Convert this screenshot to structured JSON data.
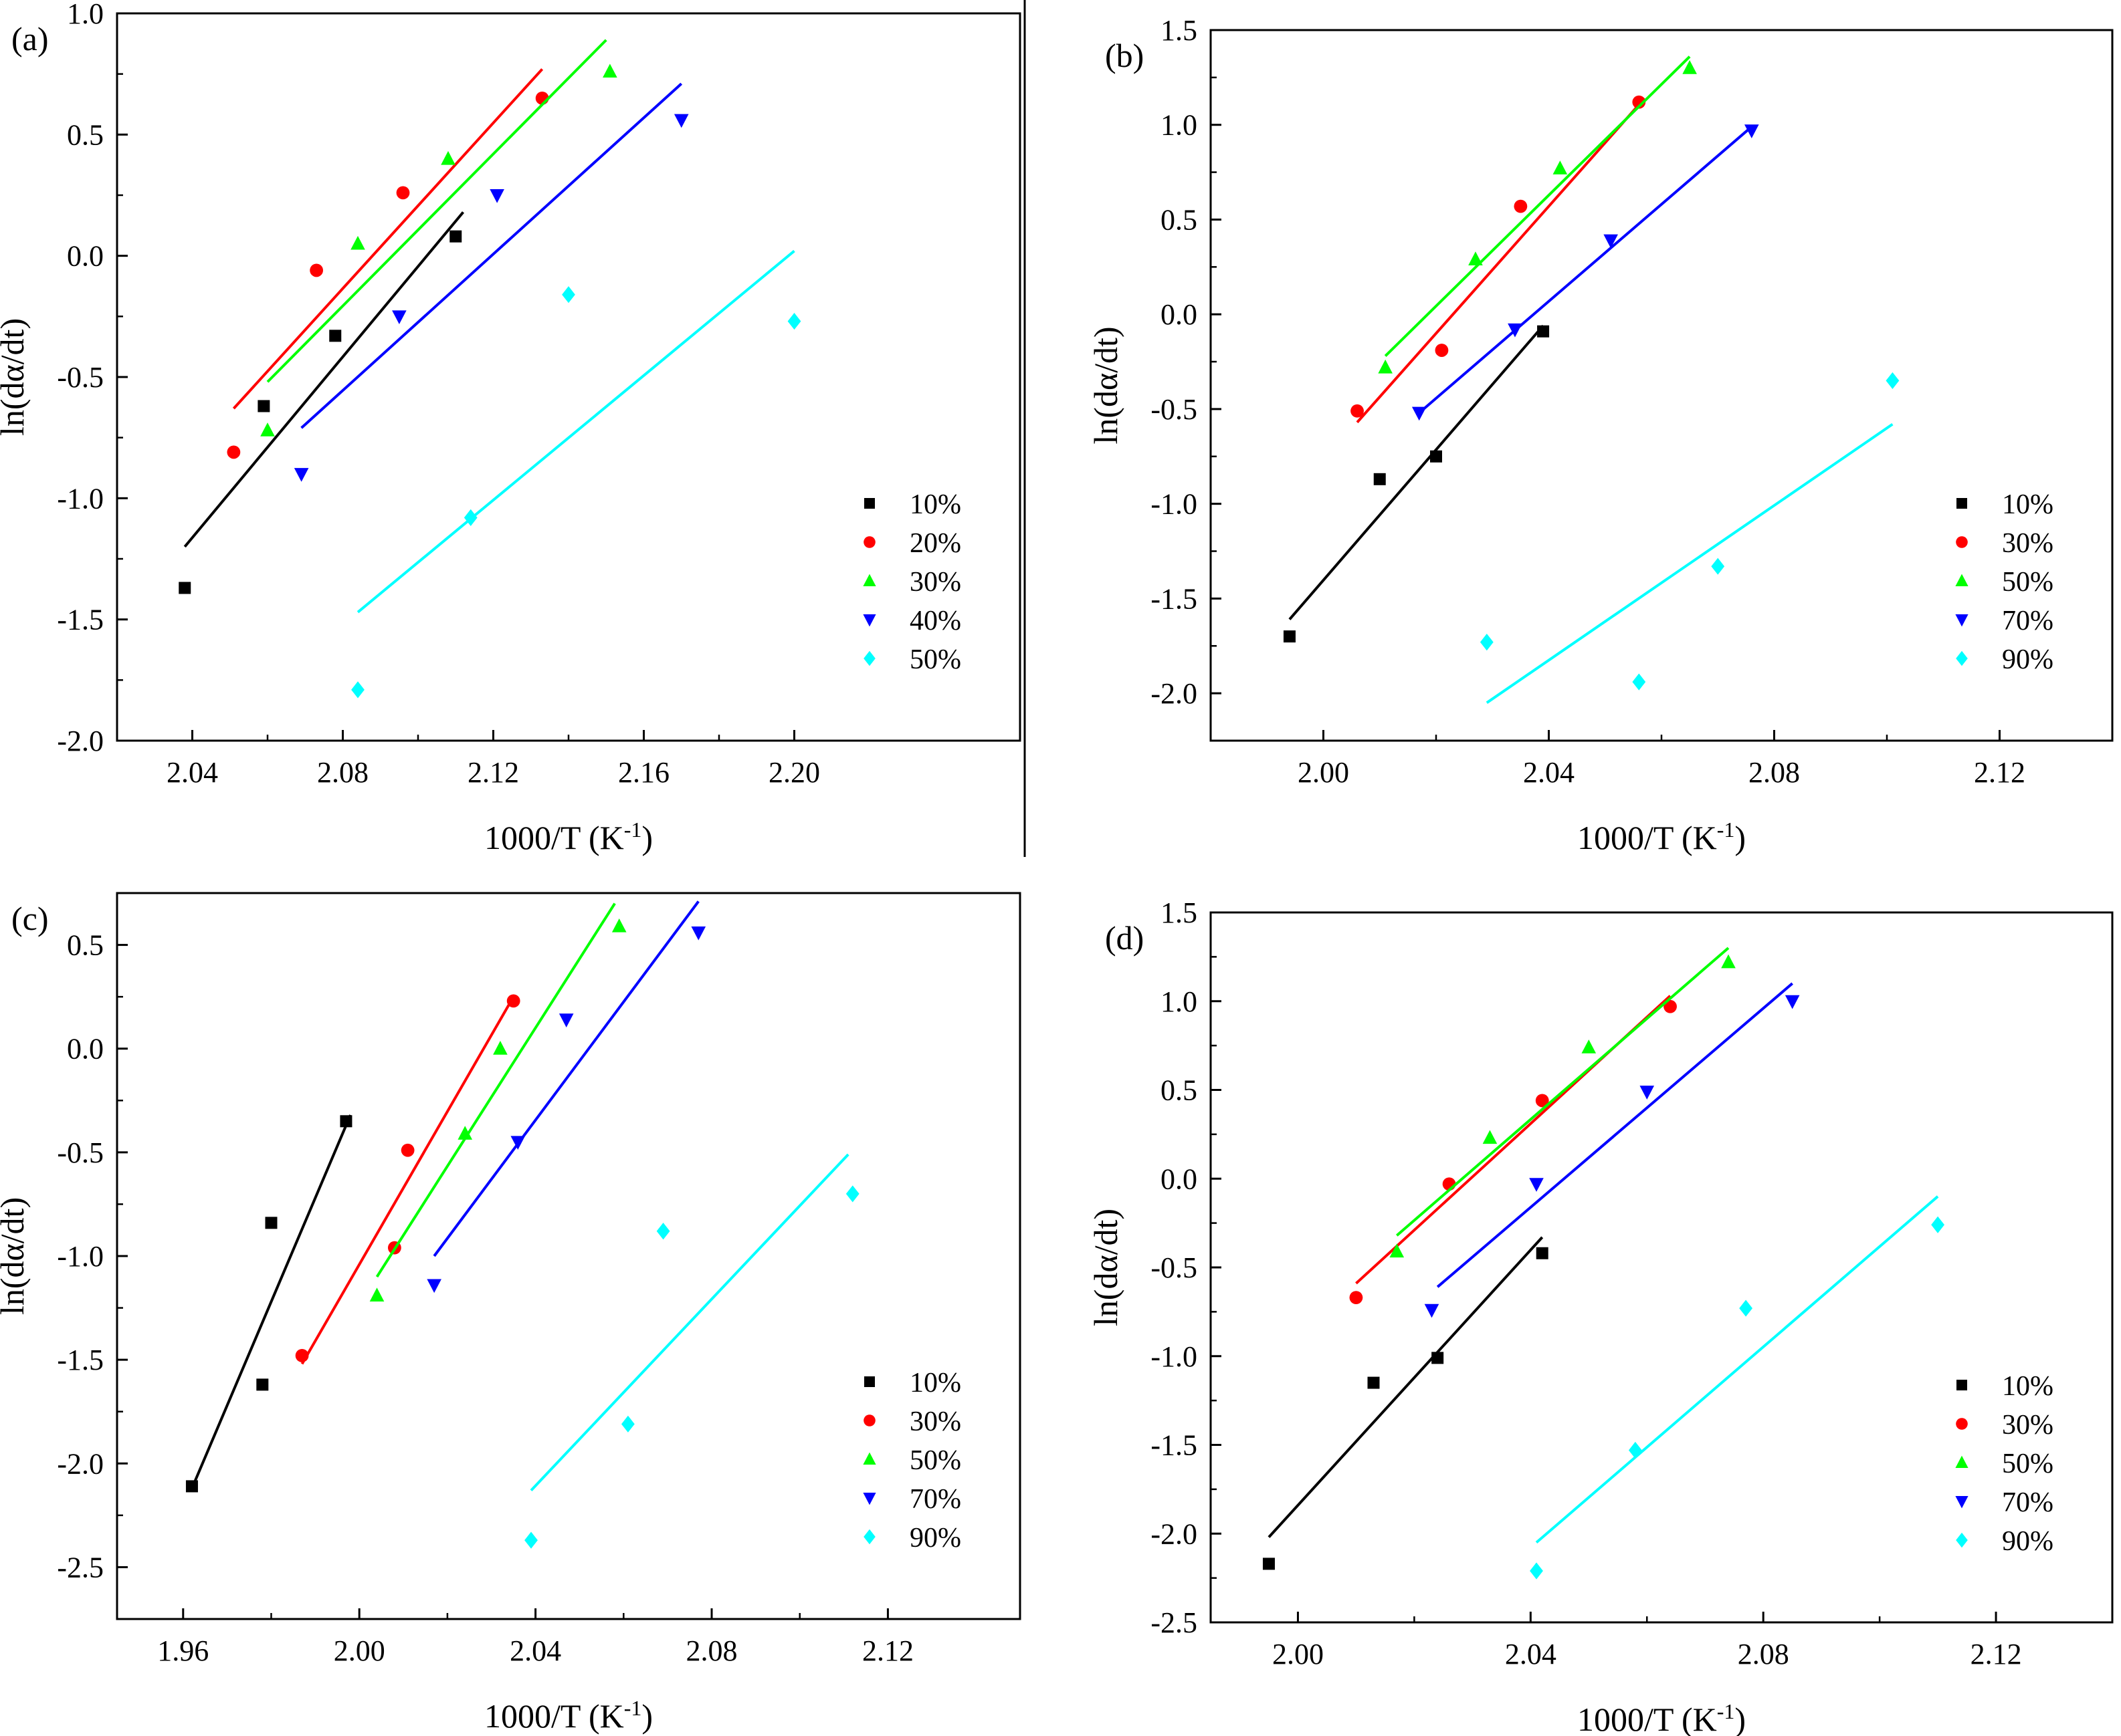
{
  "chart_data": [
    {
      "id": "a",
      "type": "scatter",
      "panel_label": "(a)",
      "xlabel": "1000/T (K",
      "xlabel_sup": "-1",
      "xlabel_close": ")",
      "ylabel": "ln(dα/dt)",
      "xlim": [
        2.02,
        2.26
      ],
      "ylim": [
        -2.0,
        1.0
      ],
      "xticks": [
        2.04,
        2.08,
        2.12,
        2.16,
        2.2
      ],
      "xtick_labels": [
        "2.04",
        "2.08",
        "2.12",
        "2.16",
        "2.20"
      ],
      "yticks": [
        1.0,
        0.5,
        0.0,
        -0.5,
        -1.0,
        -1.5,
        -2.0
      ],
      "ytick_labels": [
        "1.0",
        "0.5",
        "0.0",
        "-0.5",
        "-1.0",
        "-1.5",
        "-2.0"
      ],
      "legend_position": "bottom-right",
      "series": [
        {
          "name": "10%",
          "color": "#000000",
          "marker": "square",
          "x": [
            2.038,
            2.059,
            2.078,
            2.11
          ],
          "y": [
            -1.37,
            -0.62,
            -0.33,
            0.08
          ],
          "fit": [
            [
              2.038,
              -1.2
            ],
            [
              2.112,
              0.18
            ]
          ]
        },
        {
          "name": "20%",
          "color": "#ff0000",
          "marker": "circle",
          "x": [
            2.051,
            2.073,
            2.096,
            2.133
          ],
          "y": [
            -0.81,
            -0.06,
            0.26,
            0.65
          ],
          "fit": [
            [
              2.051,
              -0.63
            ],
            [
              2.133,
              0.77
            ]
          ]
        },
        {
          "name": "30%",
          "color": "#00ff00",
          "marker": "triangle-up",
          "x": [
            2.06,
            2.084,
            2.108,
            2.151
          ],
          "y": [
            -0.72,
            0.05,
            0.4,
            0.76
          ],
          "fit": [
            [
              2.06,
              -0.52
            ],
            [
              2.15,
              0.89
            ]
          ]
        },
        {
          "name": "40%",
          "color": "#0000ff",
          "marker": "triangle-down",
          "x": [
            2.069,
            2.095,
            2.121,
            2.17
          ],
          "y": [
            -0.9,
            -0.25,
            0.25,
            0.56
          ],
          "fit": [
            [
              2.069,
              -0.71
            ],
            [
              2.17,
              0.71
            ]
          ]
        },
        {
          "name": "50%",
          "color": "#00ffff",
          "marker": "diamond",
          "x": [
            2.084,
            2.114,
            2.14,
            2.2
          ],
          "y": [
            -1.79,
            -1.08,
            -0.16,
            -0.27
          ],
          "fit": [
            [
              2.084,
              -1.47
            ],
            [
              2.2,
              0.02
            ]
          ]
        }
      ]
    },
    {
      "id": "b",
      "type": "scatter",
      "panel_label": "(b)",
      "xlabel": "1000/T (K",
      "xlabel_sup": "-1",
      "xlabel_close": ")",
      "ylabel": "ln(dα/dt)",
      "xlim": [
        1.98,
        2.14
      ],
      "ylim": [
        -2.25,
        1.5
      ],
      "xticks": [
        2.0,
        2.04,
        2.08,
        2.12
      ],
      "xtick_labels": [
        "2.00",
        "2.04",
        "2.08",
        "2.12"
      ],
      "yticks": [
        1.5,
        1.0,
        0.5,
        0.0,
        -0.5,
        -1.0,
        -1.5,
        -2.0
      ],
      "ytick_labels": [
        "1.5",
        "1.0",
        "0.5",
        "0.0",
        "-0.5",
        "-1.0",
        "-1.5",
        "-2.0"
      ],
      "legend_position": "bottom-right",
      "series": [
        {
          "name": "10%",
          "color": "#000000",
          "marker": "square",
          "x": [
            1.994,
            2.01,
            2.02,
            2.039
          ],
          "y": [
            -1.7,
            -0.87,
            -0.75,
            -0.09
          ],
          "fit": [
            [
              1.994,
              -1.61
            ],
            [
              2.039,
              -0.06
            ]
          ]
        },
        {
          "name": "30%",
          "color": "#ff0000",
          "marker": "circle",
          "x": [
            2.006,
            2.021,
            2.035,
            2.056
          ],
          "y": [
            -0.51,
            -0.19,
            0.57,
            1.12
          ],
          "fit": [
            [
              2.006,
              -0.57
            ],
            [
              2.057,
              1.14
            ]
          ]
        },
        {
          "name": "50%",
          "color": "#00ff00",
          "marker": "triangle-up",
          "x": [
            2.011,
            2.027,
            2.042,
            2.065
          ],
          "y": [
            -0.28,
            0.29,
            0.77,
            1.3
          ],
          "fit": [
            [
              2.011,
              -0.22
            ],
            [
              2.065,
              1.36
            ]
          ]
        },
        {
          "name": "70%",
          "color": "#0000ff",
          "marker": "triangle-down",
          "x": [
            2.017,
            2.034,
            2.051,
            2.076
          ],
          "y": [
            -0.52,
            -0.08,
            0.39,
            0.97
          ],
          "fit": [
            [
              2.017,
              -0.52
            ],
            [
              2.076,
              0.99
            ]
          ]
        },
        {
          "name": "90%",
          "color": "#00ffff",
          "marker": "diamond",
          "x": [
            2.029,
            2.056,
            2.07,
            2.101
          ],
          "y": [
            -1.73,
            -1.94,
            -1.33,
            -0.35
          ],
          "fit": [
            [
              2.029,
              -2.05
            ],
            [
              2.101,
              -0.58
            ]
          ]
        }
      ]
    },
    {
      "id": "c",
      "type": "scatter",
      "panel_label": "(c)",
      "xlabel": "1000/T (K",
      "xlabel_sup": "-1",
      "xlabel_close": ")",
      "ylabel": "ln(dα/dt)",
      "xlim": [
        1.945,
        2.15
      ],
      "ylim": [
        -2.75,
        0.75
      ],
      "xticks": [
        1.96,
        2.0,
        2.04,
        2.08,
        2.12
      ],
      "xtick_labels": [
        "1.96",
        "2.00",
        "2.04",
        "2.08",
        "2.12"
      ],
      "yticks": [
        0.5,
        0.0,
        -0.5,
        -1.0,
        -1.5,
        -2.0,
        -2.5
      ],
      "ytick_labels": [
        "0.5",
        "0.0",
        "-0.5",
        "-1.0",
        "-1.5",
        "-2.0",
        "-2.5"
      ],
      "legend_position": "bottom-right",
      "series": [
        {
          "name": "10%",
          "color": "#000000",
          "marker": "square",
          "x": [
            1.962,
            1.978,
            1.98,
            1.997
          ],
          "y": [
            -2.11,
            -1.62,
            -0.84,
            -0.35
          ],
          "fit": [
            [
              1.962,
              -2.12
            ],
            [
              1.998,
              -0.32
            ]
          ]
        },
        {
          "name": "30%",
          "color": "#ff0000",
          "marker": "circle",
          "x": [
            1.987,
            2.008,
            2.011,
            2.035
          ],
          "y": [
            -1.48,
            -0.96,
            -0.49,
            0.23
          ],
          "fit": [
            [
              1.987,
              -1.52
            ],
            [
              2.035,
              0.25
            ]
          ]
        },
        {
          "name": "50%",
          "color": "#00ff00",
          "marker": "triangle-up",
          "x": [
            2.004,
            2.024,
            2.032,
            2.059
          ],
          "y": [
            -1.19,
            -0.41,
            0.0,
            0.59
          ],
          "fit": [
            [
              2.004,
              -1.1
            ],
            [
              2.058,
              0.7
            ]
          ]
        },
        {
          "name": "70%",
          "color": "#0000ff",
          "marker": "triangle-down",
          "x": [
            2.017,
            2.036,
            2.047,
            2.077
          ],
          "y": [
            -1.14,
            -0.45,
            0.14,
            0.56
          ],
          "fit": [
            [
              2.017,
              -1.0
            ],
            [
              2.077,
              0.71
            ]
          ]
        },
        {
          "name": "90%",
          "color": "#00ffff",
          "marker": "diamond",
          "x": [
            2.039,
            2.061,
            2.069,
            2.112
          ],
          "y": [
            -2.37,
            -1.81,
            -0.88,
            -0.7
          ],
          "fit": [
            [
              2.039,
              -2.13
            ],
            [
              2.111,
              -0.51
            ]
          ]
        }
      ]
    },
    {
      "id": "d",
      "type": "scatter",
      "panel_label": "(d)",
      "xlabel": "1000/T (K",
      "xlabel_sup": "-1",
      "xlabel_close": ")",
      "ylabel": "ln(dα/dt)",
      "xlim": [
        1.985,
        2.14
      ],
      "ylim": [
        -2.5,
        1.5
      ],
      "xticks": [
        2.0,
        2.04,
        2.08,
        2.12
      ],
      "xtick_labels": [
        "2.00",
        "2.04",
        "2.08",
        "2.12"
      ],
      "yticks": [
        1.5,
        1.0,
        0.5,
        0.0,
        -0.5,
        -1.0,
        -1.5,
        -2.0,
        -2.5
      ],
      "ytick_labels": [
        "1.5",
        "1.0",
        "0.5",
        "0.0",
        "-0.5",
        "-1.0",
        "-1.5",
        "-2.0",
        "-2.5"
      ],
      "legend_position": "bottom-right",
      "series": [
        {
          "name": "10%",
          "color": "#000000",
          "marker": "square",
          "x": [
            1.995,
            2.013,
            2.024,
            2.042
          ],
          "y": [
            -2.17,
            -1.15,
            -1.01,
            -0.42
          ],
          "fit": [
            [
              1.995,
              -2.02
            ],
            [
              2.042,
              -0.33
            ]
          ]
        },
        {
          "name": "30%",
          "color": "#ff0000",
          "marker": "circle",
          "x": [
            2.01,
            2.026,
            2.042,
            2.064
          ],
          "y": [
            -0.67,
            -0.03,
            0.44,
            0.97
          ],
          "fit": [
            [
              2.01,
              -0.59
            ],
            [
              2.064,
              1.03
            ]
          ]
        },
        {
          "name": "50%",
          "color": "#00ff00",
          "marker": "triangle-up",
          "x": [
            2.017,
            2.033,
            2.05,
            2.074
          ],
          "y": [
            -0.41,
            0.23,
            0.74,
            1.22
          ],
          "fit": [
            [
              2.017,
              -0.32
            ],
            [
              2.074,
              1.3
            ]
          ]
        },
        {
          "name": "70%",
          "color": "#0000ff",
          "marker": "triangle-down",
          "x": [
            2.023,
            2.041,
            2.06,
            2.085
          ],
          "y": [
            -0.74,
            -0.03,
            0.49,
            1.0
          ],
          "fit": [
            [
              2.024,
              -0.61
            ],
            [
              2.085,
              1.1
            ]
          ]
        },
        {
          "name": "90%",
          "color": "#00ffff",
          "marker": "diamond",
          "x": [
            2.041,
            2.058,
            2.077,
            2.11
          ],
          "y": [
            -2.21,
            -1.53,
            -0.73,
            -0.26
          ],
          "fit": [
            [
              2.041,
              -2.05
            ],
            [
              2.11,
              -0.1
            ]
          ]
        }
      ]
    }
  ]
}
